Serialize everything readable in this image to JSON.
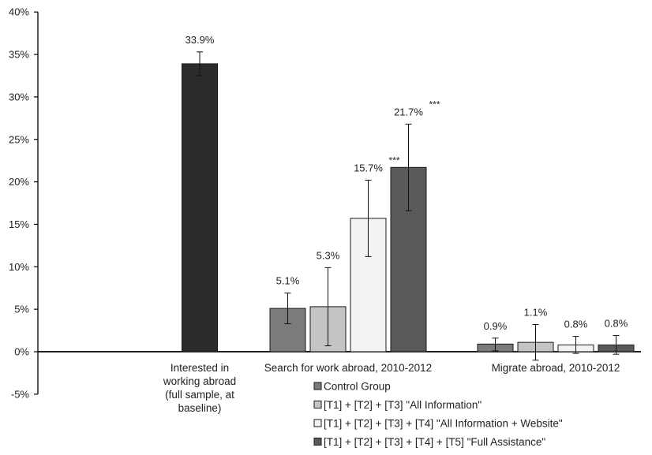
{
  "chart_data": {
    "type": "bar",
    "y_axis": {
      "min": -5,
      "max": 40,
      "step": 5,
      "tick_labels": [
        "-5%",
        "0%",
        "5%",
        "10%",
        "15%",
        "20%",
        "25%",
        "30%",
        "35%",
        "40%"
      ]
    },
    "grid": false,
    "legend_position": "bottom-center",
    "colors": {
      "baseline": "#2b2b2b",
      "control": "#7b7b7b",
      "all_info": "#c4c4c4",
      "all_info_web": "#f3f3f3",
      "full_assist": "#5a5a5a"
    },
    "groups": [
      {
        "label_lines": [
          "Interested in",
          "working abroad",
          "(full sample, at",
          "baseline)"
        ],
        "bars": [
          {
            "series": "baseline",
            "value": 33.9,
            "err_low": 32.5,
            "err_high": 35.3,
            "label": "33.9%",
            "sig": ""
          }
        ]
      },
      {
        "label_lines": [
          "Search for work abroad, 2010-2012"
        ],
        "bars": [
          {
            "series": "control",
            "value": 5.1,
            "err_low": 3.3,
            "err_high": 6.9,
            "label": "5.1%",
            "sig": ""
          },
          {
            "series": "all_info",
            "value": 5.3,
            "err_low": 0.7,
            "err_high": 9.9,
            "label": "5.3%",
            "sig": ""
          },
          {
            "series": "all_info_web",
            "value": 15.7,
            "err_low": 11.2,
            "err_high": 20.2,
            "label": "15.7%",
            "sig": "***"
          },
          {
            "series": "full_assist",
            "value": 21.7,
            "err_low": 16.6,
            "err_high": 26.8,
            "label": "21.7%",
            "sig": "***"
          }
        ]
      },
      {
        "label_lines": [
          "Migrate abroad, 2010-2012"
        ],
        "bars": [
          {
            "series": "control",
            "value": 0.9,
            "err_low": 0.1,
            "err_high": 1.6,
            "label": "0.9%",
            "sig": ""
          },
          {
            "series": "all_info",
            "value": 1.1,
            "err_low": -1.0,
            "err_high": 3.2,
            "label": "1.1%",
            "sig": ""
          },
          {
            "series": "all_info_web",
            "value": 0.8,
            "err_low": -0.2,
            "err_high": 1.8,
            "label": "0.8%",
            "sig": ""
          },
          {
            "series": "full_assist",
            "value": 0.8,
            "err_low": -0.3,
            "err_high": 1.9,
            "label": "0.8%",
            "sig": ""
          }
        ]
      }
    ],
    "legend": [
      {
        "series": "control",
        "label": "Control Group"
      },
      {
        "series": "all_info",
        "label": "[T1] + [T2] + [T3] \"All Information\""
      },
      {
        "series": "all_info_web",
        "label": "[T1] + [T2] + [T3] + [T4] \"All Information + Website\""
      },
      {
        "series": "full_assist",
        "label": "[T1] + [T2] + [T3] + [T4] + [T5] \"Full Assistance\""
      }
    ]
  }
}
